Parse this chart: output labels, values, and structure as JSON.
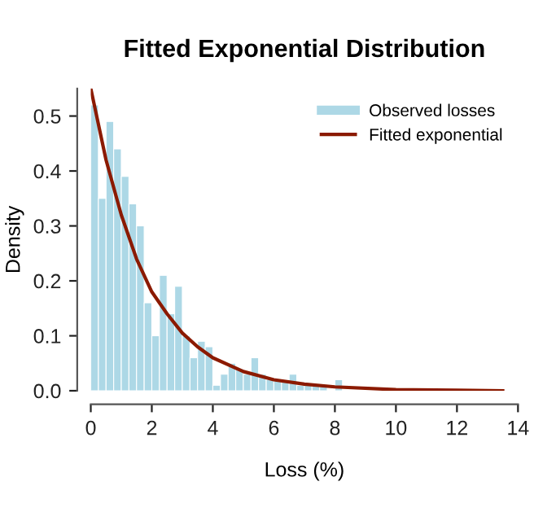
{
  "chart_data": {
    "type": "histogram",
    "title": "Fitted Exponential Distribution",
    "xlabel": "Loss (%)",
    "ylabel": "Density",
    "bins": [
      0,
      0.25,
      0.5,
      0.75,
      1,
      1.25,
      1.5,
      1.75,
      2,
      2.25,
      2.5,
      2.75,
      3,
      3.25,
      3.5,
      3.75,
      4,
      4.25,
      4.5,
      4.75,
      5,
      5.25,
      5.5,
      5.75,
      6,
      6.25,
      6.5,
      6.75,
      7,
      7.25,
      7.5,
      7.75,
      8,
      8.25,
      8.5,
      8.75,
      9,
      9.25,
      9.5,
      9.75,
      10,
      10.25,
      10.5,
      10.75,
      11,
      11.25,
      11.5,
      11.75,
      12,
      12.25,
      12.5,
      12.75,
      13,
      13.25,
      13.5
    ],
    "series": [
      {
        "name": "Observed losses",
        "type": "histogram",
        "color": "#add8e6",
        "values": [
          0.52,
          0.35,
          0.49,
          0.44,
          0.39,
          0.34,
          0.3,
          0.16,
          0.1,
          0.21,
          0.14,
          0.19,
          0.1,
          0.06,
          0.09,
          0.08,
          0.01,
          0.03,
          0.05,
          0.04,
          0.03,
          0.06,
          0.03,
          0.02,
          0.02,
          0.02,
          0.03,
          0.01,
          0.01,
          0.01,
          0.01,
          0.0,
          0.02,
          0.0,
          0.0,
          0.0,
          0.0,
          0.0,
          0.0,
          0.0,
          0.0,
          0.0,
          0.0,
          0.0,
          0.0,
          0.0,
          0.0,
          0.0,
          0.0,
          0.0,
          0.0,
          0.0,
          0.0,
          0.0
        ]
      },
      {
        "name": "Fitted exponential",
        "type": "line",
        "color": "#8b1a00",
        "x": [
          0,
          0.5,
          1,
          1.5,
          2,
          2.5,
          3,
          3.5,
          4,
          5,
          6,
          7,
          8,
          10,
          12,
          13.5
        ],
        "values": [
          0.55,
          0.42,
          0.32,
          0.24,
          0.18,
          0.14,
          0.105,
          0.08,
          0.06,
          0.035,
          0.02,
          0.012,
          0.007,
          0.002,
          0.001,
          0.0
        ]
      }
    ],
    "xlim": [
      0,
      14
    ],
    "xticks": [
      0,
      2,
      4,
      6,
      8,
      10,
      12,
      14
    ],
    "ylim": [
      0,
      0.55
    ],
    "yticks": [
      {
        "value": 0,
        "label": "0.0"
      },
      0.1,
      0.2,
      0.3,
      0.4,
      0.5
    ],
    "legend": "top right",
    "grid": false
  }
}
